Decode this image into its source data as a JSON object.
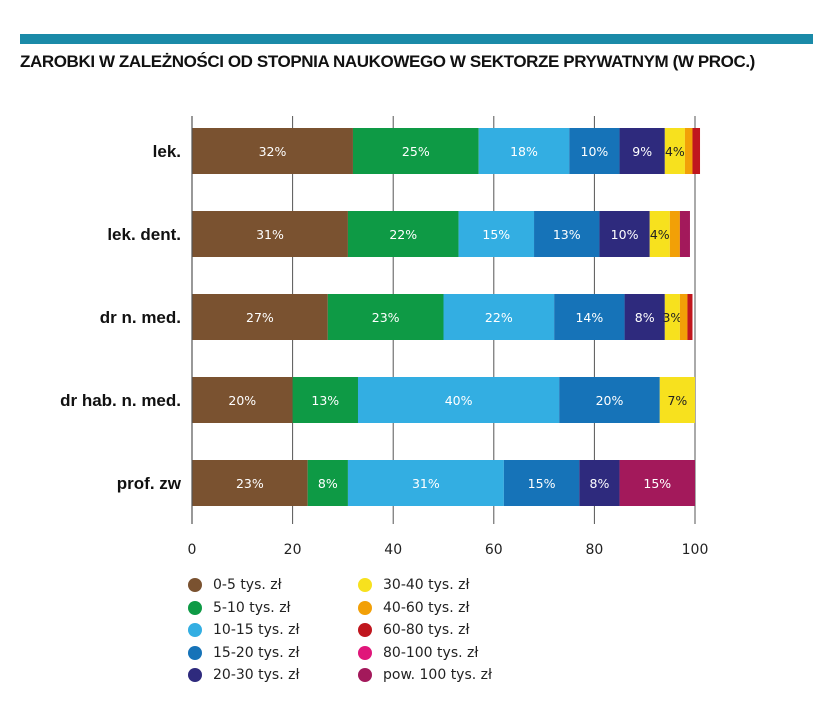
{
  "chart_data": {
    "type": "bar",
    "orientation": "horizontal",
    "stacked": true,
    "title": "ZAROBKI W ZALEŻNOŚCI OD STOPNIA NAUKOWEGO W SEKTORZE PRYWATNYM (W PROC.)",
    "xlabel": "",
    "ylabel": "",
    "xlim": [
      0,
      100
    ],
    "xticks": [
      "0",
      "20",
      "40",
      "60",
      "80",
      "100"
    ],
    "grid": true,
    "legend_position": "bottom-left",
    "categories": [
      "lek.",
      "lek. dent.",
      "dr n. med.",
      "dr hab. n. med.",
      "prof. zw"
    ],
    "series": [
      {
        "name": "0-5 tys. zł",
        "color": "#7a5230",
        "values": [
          32,
          31,
          27,
          20,
          23
        ],
        "labels": [
          "32%",
          "31%",
          "27%",
          "20%",
          "23%"
        ]
      },
      {
        "name": "5-10 tys. zł",
        "color": "#0e9a45",
        "values": [
          25,
          22,
          23,
          13,
          8
        ],
        "labels": [
          "25%",
          "22%",
          "23%",
          "13%",
          "8%"
        ]
      },
      {
        "name": "10-15 tys. zł",
        "color": "#33aee2",
        "values": [
          18,
          15,
          22,
          40,
          31
        ],
        "labels": [
          "18%",
          "15%",
          "22%",
          "40%",
          "31%"
        ]
      },
      {
        "name": "15-20 tys. zł",
        "color": "#1673b8",
        "values": [
          10,
          13,
          14,
          20,
          15
        ],
        "labels": [
          "10%",
          "13%",
          "14%",
          "20%",
          "15%"
        ]
      },
      {
        "name": "20-30 tys. zł",
        "color": "#2e2a7d",
        "values": [
          9,
          10,
          8,
          0,
          8
        ],
        "labels": [
          "9%",
          "10%",
          "8%",
          "",
          "8%"
        ]
      },
      {
        "name": "30-40 tys. zł",
        "color": "#f7e11e",
        "values": [
          4,
          4,
          3,
          7,
          0
        ],
        "labels": [
          "4%",
          "4%",
          "3%",
          "7%",
          ""
        ]
      },
      {
        "name": "40-60 tys. zł",
        "color": "#f2a007",
        "values": [
          1.5,
          2,
          1.5,
          0,
          0
        ],
        "labels": [
          "",
          "",
          "",
          "",
          ""
        ]
      },
      {
        "name": "60-80 tys. zł",
        "color": "#c0161e",
        "values": [
          1.5,
          0,
          1,
          0,
          0
        ],
        "labels": [
          "",
          "",
          "",
          "",
          ""
        ]
      },
      {
        "name": "80-100 tys. zł",
        "color": "#e0167a",
        "values": [
          0,
          0,
          0,
          0,
          0
        ],
        "labels": [
          "",
          "",
          "",
          "",
          ""
        ]
      },
      {
        "name": "pow. 100 tys. zł",
        "color": "#a3195b",
        "values": [
          0,
          2,
          0,
          0,
          15
        ],
        "labels": [
          "",
          "",
          "",
          "",
          "15%"
        ]
      }
    ]
  }
}
